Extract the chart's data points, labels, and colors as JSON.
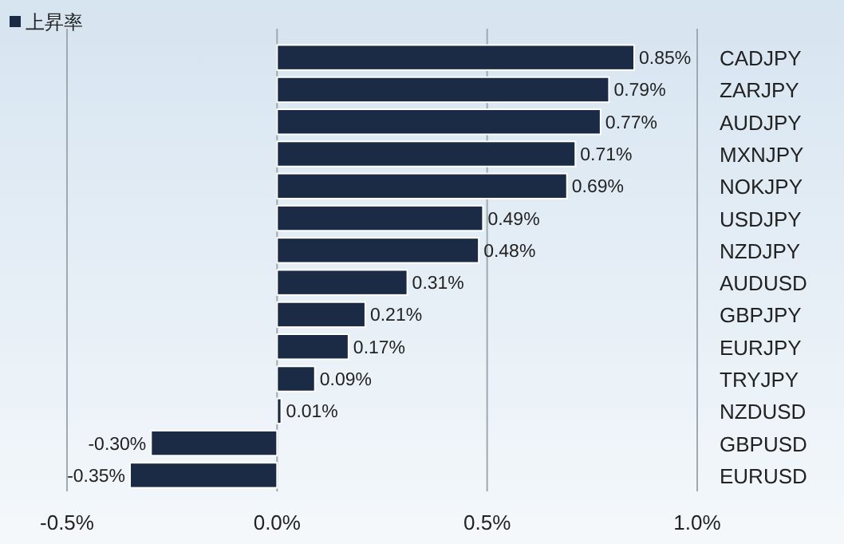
{
  "chart_data": {
    "type": "bar",
    "orientation": "horizontal",
    "categories": [
      "CADJPY",
      "ZARJPY",
      "AUDJPY",
      "MXNJPY",
      "NOKJPY",
      "USDJPY",
      "NZDJPY",
      "AUDUSD",
      "GBPJPY",
      "EURJPY",
      "TRYJPY",
      "NZDUSD",
      "GBPUSD",
      "EURUSD"
    ],
    "series": [
      {
        "name": "上昇率",
        "color": "#1b2a45",
        "values": [
          0.85,
          0.79,
          0.77,
          0.71,
          0.69,
          0.49,
          0.48,
          0.31,
          0.21,
          0.17,
          0.09,
          0.01,
          -0.3,
          -0.35
        ],
        "value_labels": [
          "0.85%",
          "0.79%",
          "0.77%",
          "0.71%",
          "0.69%",
          "0.49%",
          "0.48%",
          "0.31%",
          "0.21%",
          "0.17%",
          "0.09%",
          "0.01%",
          "-0.30%",
          "-0.35%"
        ]
      }
    ],
    "xlim": [
      -0.5,
      1.0
    ],
    "xticks": [
      {
        "value": -0.5,
        "label": "-0.5%"
      },
      {
        "value": 0,
        "label": "0.0%"
      },
      {
        "value": 0.5,
        "label": "0.5%"
      },
      {
        "value": 1.0,
        "label": "1.0%"
      }
    ],
    "grid": "x",
    "legend": "top left"
  }
}
